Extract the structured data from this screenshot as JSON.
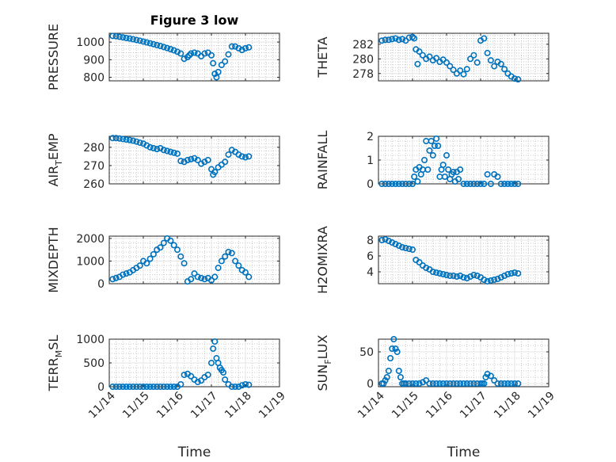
{
  "chart_data": [
    {
      "type": "scatter",
      "title": "Figure 3 low",
      "ylabel": "PRESSURE",
      "ylim": [
        780,
        1050
      ],
      "yticks": [
        800,
        900,
        1000
      ],
      "xlim": [
        0,
        5
      ],
      "xticks": [
        "11/14",
        "11/15",
        "11/16",
        "11/17",
        "11/18",
        "11/19"
      ],
      "xtick_labels_shown": false,
      "series": [
        {
          "x": [
            0.1,
            0.2,
            0.3,
            0.4,
            0.5,
            0.6,
            0.7,
            0.8,
            0.9,
            1.0,
            1.1,
            1.2,
            1.3,
            1.4,
            1.5,
            1.6,
            1.7,
            1.8,
            1.9,
            2.0,
            2.1,
            2.2,
            2.3,
            2.35,
            2.4,
            2.5,
            2.6,
            2.7,
            2.8,
            2.9,
            3.0,
            3.05,
            3.1,
            3.15,
            3.2,
            3.3,
            3.4,
            3.5,
            3.6,
            3.7,
            3.8,
            3.9,
            4.0,
            4.1
          ],
          "y": [
            1035,
            1033,
            1030,
            1027,
            1023,
            1020,
            1016,
            1012,
            1008,
            1003,
            998,
            993,
            988,
            983,
            978,
            972,
            966,
            960,
            953,
            945,
            935,
            905,
            915,
            925,
            935,
            940,
            935,
            920,
            935,
            940,
            925,
            880,
            820,
            800,
            830,
            870,
            890,
            930,
            975,
            975,
            965,
            955,
            965,
            970
          ]
        }
      ]
    },
    {
      "type": "scatter",
      "ylabel": "THETA",
      "ylim": [
        277,
        283.5
      ],
      "yticks": [
        278,
        280,
        282
      ],
      "xlim": [
        0,
        5
      ],
      "xticks": [
        "11/14",
        "11/15",
        "11/16",
        "11/17",
        "11/18",
        "11/19"
      ],
      "xtick_labels_shown": false,
      "series": [
        {
          "x": [
            0.1,
            0.2,
            0.3,
            0.4,
            0.5,
            0.6,
            0.7,
            0.8,
            0.9,
            1.0,
            1.05,
            1.1,
            1.15,
            1.2,
            1.3,
            1.4,
            1.5,
            1.6,
            1.7,
            1.8,
            1.9,
            2.0,
            2.1,
            2.2,
            2.3,
            2.4,
            2.5,
            2.6,
            2.7,
            2.8,
            2.9,
            3.0,
            3.1,
            3.2,
            3.3,
            3.4,
            3.5,
            3.6,
            3.7,
            3.8,
            3.9,
            4.0,
            4.1
          ],
          "y": [
            282.5,
            282.6,
            282.6,
            282.7,
            282.8,
            282.6,
            282.7,
            282.5,
            282.9,
            283.0,
            282.8,
            281.3,
            279.3,
            281.0,
            280.5,
            280.0,
            280.3,
            279.8,
            280.1,
            279.6,
            279.9,
            279.5,
            279.0,
            278.5,
            278.0,
            278.4,
            277.9,
            278.6,
            280.0,
            280.5,
            279.5,
            282.5,
            282.8,
            280.8,
            279.8,
            279.0,
            279.6,
            279.3,
            278.6,
            278.0,
            277.6,
            277.3,
            277.2
          ]
        }
      ]
    },
    {
      "type": "scatter",
      "ylabel": "AIR_TEMP",
      "ylim": [
        260,
        286
      ],
      "yticks": [
        260,
        270,
        280
      ],
      "xlim": [
        0,
        5
      ],
      "xticks": [
        "11/14",
        "11/15",
        "11/16",
        "11/17",
        "11/18",
        "11/19"
      ],
      "xtick_labels_shown": false,
      "series": [
        {
          "x": [
            0.1,
            0.2,
            0.3,
            0.4,
            0.5,
            0.6,
            0.7,
            0.8,
            0.9,
            1.0,
            1.1,
            1.2,
            1.3,
            1.4,
            1.5,
            1.6,
            1.7,
            1.8,
            1.9,
            2.0,
            2.1,
            2.2,
            2.3,
            2.4,
            2.5,
            2.6,
            2.7,
            2.8,
            2.9,
            3.0,
            3.05,
            3.1,
            3.2,
            3.3,
            3.4,
            3.5,
            3.6,
            3.7,
            3.8,
            3.9,
            4.0,
            4.1
          ],
          "y": [
            285,
            285,
            284.8,
            284.5,
            284.2,
            284,
            283.6,
            283.1,
            282.5,
            282,
            281,
            280,
            279.5,
            279,
            279.5,
            278.5,
            278,
            277.5,
            277,
            276.5,
            272.5,
            272,
            273,
            273.5,
            274,
            273,
            271,
            272,
            273,
            268,
            265,
            266.5,
            269,
            270.5,
            272,
            276,
            278.5,
            277.5,
            276,
            275,
            274.5,
            275
          ]
        }
      ]
    },
    {
      "type": "scatter",
      "ylabel": "RAINFALL",
      "ylim": [
        0,
        2
      ],
      "yticks": [
        0,
        1,
        2
      ],
      "xlim": [
        0,
        5
      ],
      "xticks": [
        "11/14",
        "11/15",
        "11/16",
        "11/17",
        "11/18",
        "11/19"
      ],
      "xtick_labels_shown": false,
      "series": [
        {
          "x": [
            0.1,
            0.2,
            0.3,
            0.4,
            0.5,
            0.6,
            0.7,
            0.8,
            0.9,
            1.0,
            1.05,
            1.1,
            1.15,
            1.2,
            1.25,
            1.3,
            1.35,
            1.4,
            1.45,
            1.5,
            1.55,
            1.6,
            1.65,
            1.7,
            1.75,
            1.8,
            1.85,
            1.9,
            1.95,
            2.0,
            2.05,
            2.1,
            2.15,
            2.2,
            2.25,
            2.3,
            2.35,
            2.4,
            2.5,
            2.6,
            2.7,
            2.8,
            2.9,
            3.0,
            3.1,
            3.2,
            3.3,
            3.4,
            3.5,
            3.6,
            3.7,
            3.8,
            3.9,
            4.0,
            4.1
          ],
          "y": [
            0,
            0,
            0,
            0,
            0,
            0,
            0,
            0,
            0,
            0,
            0.3,
            0.6,
            0.1,
            0.7,
            0.4,
            0.6,
            1.0,
            1.8,
            0.6,
            1.4,
            1.8,
            1.2,
            1.6,
            1.9,
            1.6,
            0.3,
            0.6,
            0.8,
            0.3,
            1.2,
            0.6,
            0.2,
            0.4,
            0.5,
            0.1,
            0.5,
            0.2,
            0.6,
            0,
            0,
            0,
            0,
            0,
            0,
            0,
            0.4,
            0,
            0.4,
            0.3,
            0,
            0,
            0,
            0,
            0,
            0
          ]
        }
      ]
    },
    {
      "type": "scatter",
      "ylabel": "MIXDEPTH",
      "ylim": [
        0,
        2100
      ],
      "yticks": [
        0,
        1000,
        2000
      ],
      "xlim": [
        0,
        5
      ],
      "xticks": [
        "11/14",
        "11/15",
        "11/16",
        "11/17",
        "11/18",
        "11/19"
      ],
      "xtick_labels_shown": false,
      "series": [
        {
          "x": [
            0.1,
            0.2,
            0.3,
            0.4,
            0.5,
            0.6,
            0.7,
            0.8,
            0.9,
            1.0,
            1.1,
            1.2,
            1.3,
            1.4,
            1.5,
            1.6,
            1.7,
            1.8,
            1.9,
            2.0,
            2.1,
            2.2,
            2.3,
            2.4,
            2.5,
            2.6,
            2.7,
            2.8,
            2.9,
            3.0,
            3.1,
            3.2,
            3.3,
            3.4,
            3.5,
            3.6,
            3.7,
            3.8,
            3.9,
            4.0,
            4.1
          ],
          "y": [
            200,
            250,
            300,
            400,
            450,
            500,
            600,
            700,
            800,
            1000,
            900,
            1100,
            1300,
            1500,
            1600,
            1800,
            2000,
            1900,
            1700,
            1500,
            1200,
            900,
            100,
            200,
            450,
            300,
            250,
            200,
            250,
            150,
            300,
            700,
            1000,
            1200,
            1400,
            1350,
            1000,
            800,
            600,
            500,
            300
          ]
        }
      ]
    },
    {
      "type": "scatter",
      "ylabel": "H2OMIXRA",
      "ylim": [
        2.5,
        8.5
      ],
      "yticks": [
        4,
        6,
        8
      ],
      "xlim": [
        0,
        5
      ],
      "xticks": [
        "11/14",
        "11/15",
        "11/16",
        "11/17",
        "11/18",
        "11/19"
      ],
      "xtick_labels_shown": false,
      "series": [
        {
          "x": [
            0.1,
            0.2,
            0.3,
            0.4,
            0.5,
            0.6,
            0.7,
            0.8,
            0.9,
            1.0,
            1.1,
            1.2,
            1.3,
            1.4,
            1.5,
            1.6,
            1.7,
            1.8,
            1.9,
            2.0,
            2.1,
            2.2,
            2.3,
            2.4,
            2.5,
            2.6,
            2.7,
            2.8,
            2.9,
            3.0,
            3.1,
            3.2,
            3.3,
            3.4,
            3.5,
            3.6,
            3.7,
            3.8,
            3.9,
            4.0,
            4.1
          ],
          "y": [
            8.0,
            8.1,
            7.9,
            7.7,
            7.5,
            7.3,
            7.1,
            7.0,
            6.9,
            6.8,
            5.5,
            5.2,
            4.8,
            4.5,
            4.3,
            4.0,
            3.9,
            3.8,
            3.7,
            3.6,
            3.5,
            3.5,
            3.4,
            3.5,
            3.3,
            3.2,
            3.4,
            3.6,
            3.5,
            3.3,
            3.0,
            2.8,
            2.9,
            3.0,
            3.1,
            3.3,
            3.5,
            3.7,
            3.8,
            3.9,
            3.8
          ]
        }
      ]
    },
    {
      "type": "scatter",
      "ylabel": "TERR_MSL",
      "ylim": [
        0,
        1000
      ],
      "yticks": [
        0,
        500,
        1000
      ],
      "xlim": [
        0,
        5
      ],
      "xticks": [
        "11/14",
        "11/15",
        "11/16",
        "11/17",
        "11/18",
        "11/19"
      ],
      "xtick_labels_shown": true,
      "xlabel": "Time",
      "series": [
        {
          "x": [
            0.1,
            0.2,
            0.3,
            0.4,
            0.5,
            0.6,
            0.7,
            0.8,
            0.9,
            1.0,
            1.1,
            1.2,
            1.3,
            1.4,
            1.5,
            1.6,
            1.7,
            1.8,
            1.9,
            2.0,
            2.1,
            2.2,
            2.3,
            2.4,
            2.5,
            2.6,
            2.7,
            2.8,
            2.9,
            3.0,
            3.05,
            3.1,
            3.15,
            3.2,
            3.25,
            3.3,
            3.35,
            3.4,
            3.5,
            3.6,
            3.7,
            3.8,
            3.9,
            4.0,
            4.1
          ],
          "y": [
            0,
            0,
            0,
            0,
            0,
            0,
            0,
            0,
            0,
            0,
            0,
            0,
            0,
            0,
            0,
            0,
            0,
            0,
            0,
            0,
            50,
            250,
            270,
            220,
            150,
            100,
            130,
            200,
            250,
            500,
            800,
            950,
            600,
            500,
            400,
            350,
            300,
            150,
            50,
            0,
            0,
            0,
            30,
            50,
            40
          ]
        }
      ]
    },
    {
      "type": "scatter",
      "ylabel": "SUN_FLUX",
      "ylim": [
        -5,
        70
      ],
      "yticks": [
        0,
        50
      ],
      "xlim": [
        0,
        5
      ],
      "xticks": [
        "11/14",
        "11/15",
        "11/16",
        "11/17",
        "11/18",
        "11/19"
      ],
      "xtick_labels_shown": true,
      "xlabel": "Time",
      "series": [
        {
          "x": [
            0.1,
            0.15,
            0.2,
            0.25,
            0.3,
            0.35,
            0.4,
            0.45,
            0.5,
            0.55,
            0.6,
            0.65,
            0.7,
            0.75,
            0.8,
            0.9,
            1.0,
            1.1,
            1.2,
            1.3,
            1.4,
            1.5,
            1.6,
            1.7,
            1.8,
            1.9,
            2.0,
            2.1,
            2.2,
            2.3,
            2.4,
            2.5,
            2.6,
            2.7,
            2.8,
            2.9,
            3.0,
            3.05,
            3.1,
            3.15,
            3.2,
            3.3,
            3.4,
            3.5,
            3.6,
            3.7,
            3.8,
            3.9,
            4.0,
            4.1
          ],
          "y": [
            0,
            0,
            5,
            10,
            20,
            40,
            55,
            70,
            55,
            50,
            20,
            10,
            0,
            0,
            0,
            0,
            0,
            0,
            0,
            2,
            5,
            0,
            0,
            0,
            0,
            0,
            0,
            0,
            0,
            0,
            0,
            0,
            0,
            0,
            0,
            0,
            0,
            0,
            0,
            10,
            15,
            12,
            5,
            0,
            0,
            0,
            0,
            0,
            0,
            0
          ]
        }
      ]
    }
  ]
}
